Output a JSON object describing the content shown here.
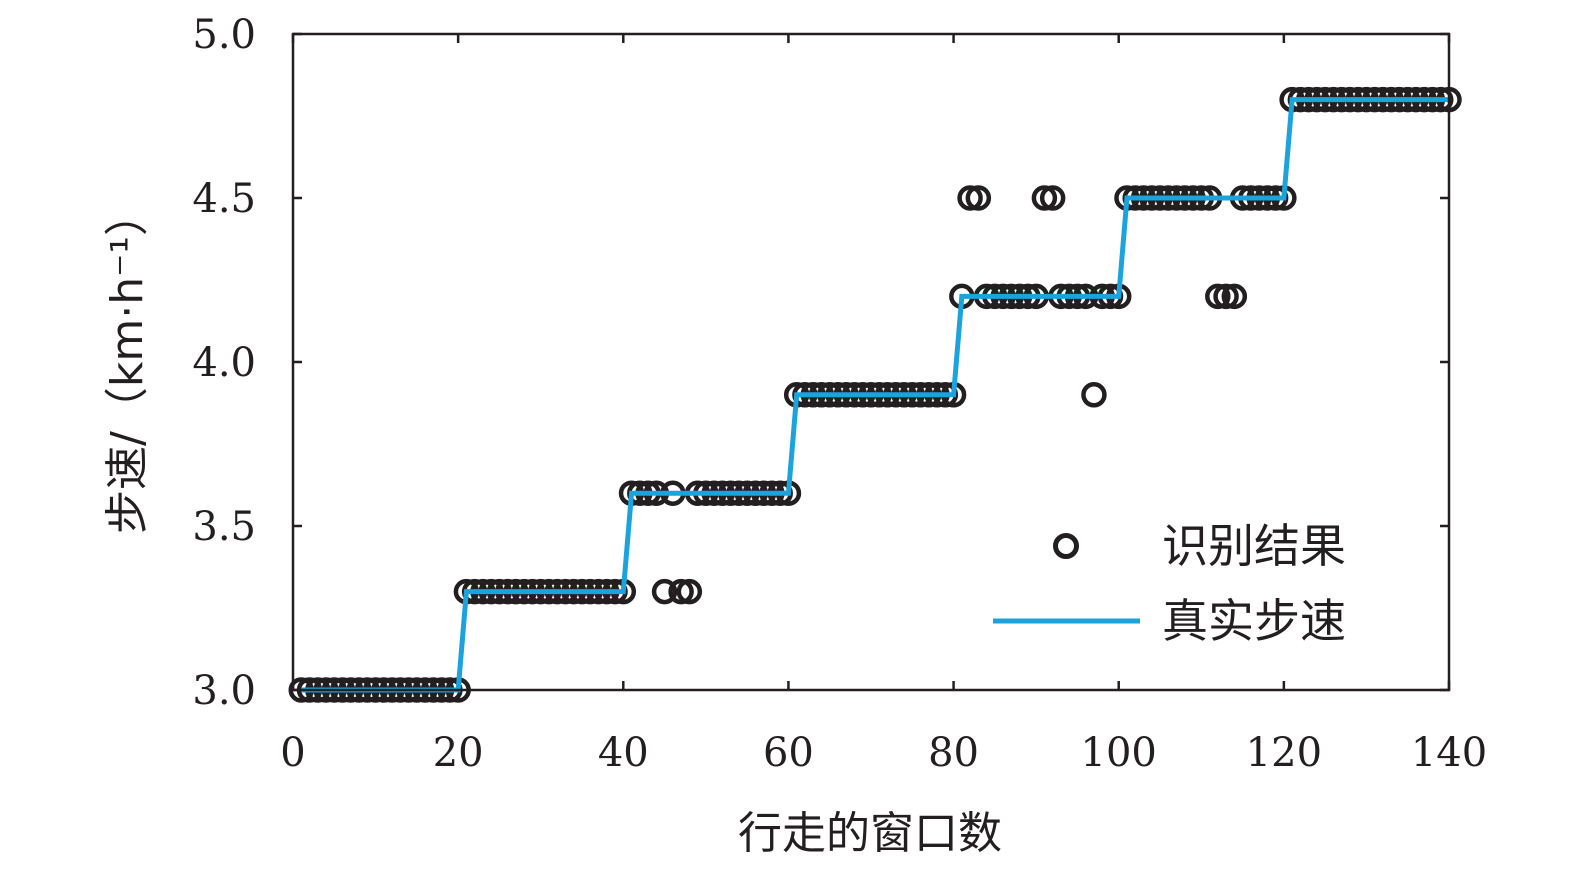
{
  "chart_data": {
    "type": "scatter",
    "xlabel": "行走的窗口数",
    "ylabel": "步速/（km·h⁻¹）",
    "xlim": [
      0,
      140
    ],
    "ylim": [
      3.0,
      5.0
    ],
    "x_ticks": [
      "0",
      "20",
      "40",
      "60",
      "80",
      "100",
      "120",
      "140"
    ],
    "y_ticks": [
      "3.0",
      "3.5",
      "4.0",
      "4.5",
      "5.0"
    ],
    "x_tick_values": [
      0,
      20,
      40,
      60,
      80,
      100,
      120,
      140
    ],
    "y_tick_values": [
      3.0,
      3.5,
      4.0,
      4.5,
      5.0
    ],
    "grid": false,
    "legend_position": "bottom-right",
    "colors": {
      "recognized": "#231f20",
      "true_speed": "#1aa3dd",
      "axes": "#231f20"
    },
    "series": [
      {
        "name": "识别结果",
        "kind": "scatter",
        "x": [
          1,
          2,
          3,
          4,
          5,
          6,
          7,
          8,
          9,
          10,
          11,
          12,
          13,
          14,
          15,
          16,
          17,
          18,
          19,
          20,
          21,
          22,
          23,
          24,
          25,
          26,
          27,
          28,
          29,
          30,
          31,
          32,
          33,
          34,
          35,
          36,
          37,
          38,
          39,
          40,
          41,
          42,
          43,
          44,
          45,
          46,
          47,
          48,
          49,
          50,
          51,
          52,
          53,
          54,
          55,
          56,
          57,
          58,
          59,
          60,
          61,
          62,
          63,
          64,
          65,
          66,
          67,
          68,
          69,
          70,
          71,
          72,
          73,
          74,
          75,
          76,
          77,
          78,
          79,
          80,
          81,
          82,
          83,
          84,
          85,
          86,
          87,
          88,
          89,
          90,
          91,
          92,
          93,
          94,
          95,
          96,
          97,
          98,
          99,
          100,
          101,
          102,
          103,
          104,
          105,
          106,
          107,
          108,
          109,
          110,
          111,
          112,
          113,
          114,
          115,
          116,
          117,
          118,
          119,
          120,
          121,
          122,
          123,
          124,
          125,
          126,
          127,
          128,
          129,
          130,
          131,
          132,
          133,
          134,
          135,
          136,
          137,
          138,
          139,
          140
        ],
        "y": [
          3.0,
          3.0,
          3.0,
          3.0,
          3.0,
          3.0,
          3.0,
          3.0,
          3.0,
          3.0,
          3.0,
          3.0,
          3.0,
          3.0,
          3.0,
          3.0,
          3.0,
          3.0,
          3.0,
          3.0,
          3.3,
          3.3,
          3.3,
          3.3,
          3.3,
          3.3,
          3.3,
          3.3,
          3.3,
          3.3,
          3.3,
          3.3,
          3.3,
          3.3,
          3.3,
          3.3,
          3.3,
          3.3,
          3.3,
          3.3,
          3.6,
          3.6,
          3.6,
          3.6,
          3.3,
          3.6,
          3.3,
          3.3,
          3.6,
          3.6,
          3.6,
          3.6,
          3.6,
          3.6,
          3.6,
          3.6,
          3.6,
          3.6,
          3.6,
          3.6,
          3.9,
          3.9,
          3.9,
          3.9,
          3.9,
          3.9,
          3.9,
          3.9,
          3.9,
          3.9,
          3.9,
          3.9,
          3.9,
          3.9,
          3.9,
          3.9,
          3.9,
          3.9,
          3.9,
          3.9,
          4.2,
          4.5,
          4.5,
          4.2,
          4.2,
          4.2,
          4.2,
          4.2,
          4.2,
          4.2,
          4.5,
          4.5,
          4.2,
          4.2,
          4.2,
          4.2,
          3.9,
          4.2,
          4.2,
          4.2,
          4.5,
          4.5,
          4.5,
          4.5,
          4.5,
          4.5,
          4.5,
          4.5,
          4.5,
          4.5,
          4.5,
          4.2,
          4.2,
          4.2,
          4.5,
          4.5,
          4.5,
          4.5,
          4.5,
          4.5,
          4.8,
          4.8,
          4.8,
          4.8,
          4.8,
          4.8,
          4.8,
          4.8,
          4.8,
          4.8,
          4.8,
          4.8,
          4.8,
          4.8,
          4.8,
          4.8,
          4.8,
          4.8,
          4.8,
          4.8
        ]
      },
      {
        "name": "真实步速",
        "kind": "step-line",
        "x": [
          1,
          20,
          21,
          40,
          41,
          60,
          61,
          80,
          81,
          100,
          101,
          120,
          121,
          140
        ],
        "y": [
          3.0,
          3.0,
          3.3,
          3.3,
          3.6,
          3.6,
          3.9,
          3.9,
          4.2,
          4.2,
          4.5,
          4.5,
          4.8,
          4.8
        ]
      }
    ]
  }
}
